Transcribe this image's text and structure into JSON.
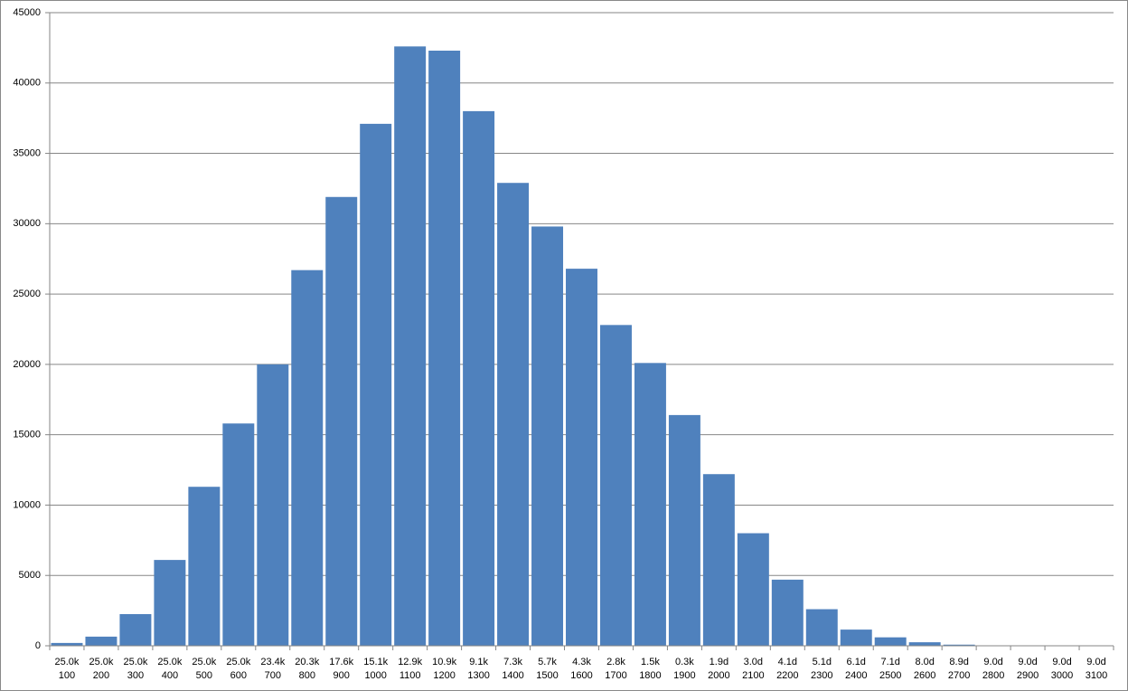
{
  "chart_data": {
    "type": "bar",
    "categories": [
      [
        "25.0k",
        "100"
      ],
      [
        "25.0k",
        "200"
      ],
      [
        "25.0k",
        "300"
      ],
      [
        "25.0k",
        "400"
      ],
      [
        "25.0k",
        "500"
      ],
      [
        "25.0k",
        "600"
      ],
      [
        "23.4k",
        "700"
      ],
      [
        "20.3k",
        "800"
      ],
      [
        "17.6k",
        "900"
      ],
      [
        "15.1k",
        "1000"
      ],
      [
        "12.9k",
        "1100"
      ],
      [
        "10.9k",
        "1200"
      ],
      [
        "9.1k",
        "1300"
      ],
      [
        "7.3k",
        "1400"
      ],
      [
        "5.7k",
        "1500"
      ],
      [
        "4.3k",
        "1600"
      ],
      [
        "2.8k",
        "1700"
      ],
      [
        "1.5k",
        "1800"
      ],
      [
        "0.3k",
        "1900"
      ],
      [
        "1.9d",
        "2000"
      ],
      [
        "3.0d",
        "2100"
      ],
      [
        "4.1d",
        "2200"
      ],
      [
        "5.1d",
        "2300"
      ],
      [
        "6.1d",
        "2400"
      ],
      [
        "7.1d",
        "2500"
      ],
      [
        "8.0d",
        "2600"
      ],
      [
        "8.9d",
        "2700"
      ],
      [
        "9.0d",
        "2800"
      ],
      [
        "9.0d",
        "2900"
      ],
      [
        "9.0d",
        "3000"
      ],
      [
        "9.0d",
        "3100"
      ]
    ],
    "values": [
      200,
      650,
      2250,
      6100,
      11300,
      15800,
      20000,
      26700,
      31900,
      37100,
      42600,
      42300,
      38000,
      32900,
      29800,
      26800,
      22800,
      20100,
      16400,
      12200,
      8000,
      4700,
      2600,
      1150,
      600,
      250,
      80,
      0,
      0,
      0,
      0
    ],
    "color": "#4f81bd",
    "ylim": [
      0,
      45000
    ],
    "yticks": [
      0,
      5000,
      10000,
      15000,
      20000,
      25000,
      30000,
      35000,
      40000,
      45000
    ],
    "grid": true
  }
}
